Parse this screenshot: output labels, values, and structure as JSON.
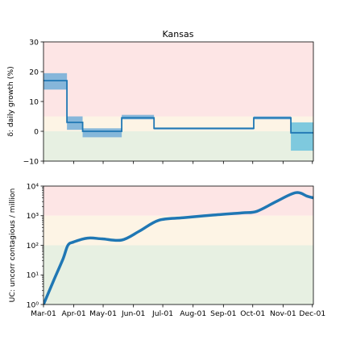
{
  "chart_data": [
    {
      "type": "step",
      "title": "Kansas",
      "ylabel": "δ: daily growth (%)",
      "xlabel": "",
      "ylim": [
        -10,
        30
      ],
      "yticks": [
        "30",
        "20",
        "10",
        "0",
        "−10"
      ],
      "ytick_values": [
        30,
        20,
        10,
        0,
        -10
      ],
      "grid": false,
      "bands": [
        {
          "from": 5,
          "to": 30,
          "color": "#fde5e5"
        },
        {
          "from": 0,
          "to": 5,
          "color": "#fdf4e5"
        },
        {
          "from": -10,
          "to": 0,
          "color": "#e7f0e2"
        }
      ],
      "line_color": "#1f77b4",
      "band_color_primary": "#7fb3d9",
      "band_color_secondary": "#78c6dd",
      "segments": [
        {
          "start": 0,
          "end": 24,
          "value": 17,
          "lo": 14,
          "hi": 19.5
        },
        {
          "start": 24,
          "end": 40,
          "value": 3,
          "lo": 0.5,
          "hi": 5
        },
        {
          "start": 40,
          "end": 80,
          "value": 0,
          "lo": -2,
          "hi": 1
        },
        {
          "start": 80,
          "end": 113,
          "value": 4.5,
          "lo": 4,
          "hi": 5.5
        },
        {
          "start": 113,
          "end": 215,
          "value": 1,
          "lo": 1,
          "hi": 1
        },
        {
          "start": 215,
          "end": 253,
          "value": 4.5,
          "lo": 4,
          "hi": 5
        },
        {
          "start": 253,
          "end": 276,
          "value": -0.5,
          "lo": -6.5,
          "hi": 3
        }
      ]
    },
    {
      "type": "line",
      "title": "",
      "ylabel": "UC: uncorr contagious / million",
      "xlabel": "",
      "yscale": "log",
      "ylim": [
        1,
        10000
      ],
      "yticks": [
        "10⁴",
        "10³",
        "10²",
        "10¹",
        "10⁰"
      ],
      "ytick_values": [
        10000,
        1000,
        100,
        10,
        1
      ],
      "grid": false,
      "bands": [
        {
          "from": 1000,
          "to": 10000,
          "color": "#fde5e5"
        },
        {
          "from": 100,
          "to": 1000,
          "color": "#fdf4e5"
        },
        {
          "from": 1,
          "to": 100,
          "color": "#e7f0e2"
        }
      ],
      "line_color": "#1f77b4",
      "x": [
        0,
        10,
        20,
        25,
        31,
        45,
        60,
        80,
        98,
        118,
        143,
        173,
        203,
        218,
        238,
        258,
        270,
        276
      ],
      "y": [
        1,
        6,
        35,
        100,
        130,
        175,
        165,
        150,
        300,
        700,
        850,
        1050,
        1250,
        1400,
        3000,
        6000,
        4500,
        4000
      ]
    }
  ],
  "x_axis": {
    "labels": [
      "Mar-01",
      "Apr-01",
      "May-01",
      "Jun-01",
      "Jul-01",
      "Aug-01",
      "Sep-01",
      "Oct-01",
      "Nov-01",
      "Dec-01"
    ],
    "label_days": [
      0,
      31,
      61,
      92,
      122,
      153,
      184,
      214,
      245,
      275
    ],
    "xlim_days": [
      0,
      276
    ]
  }
}
